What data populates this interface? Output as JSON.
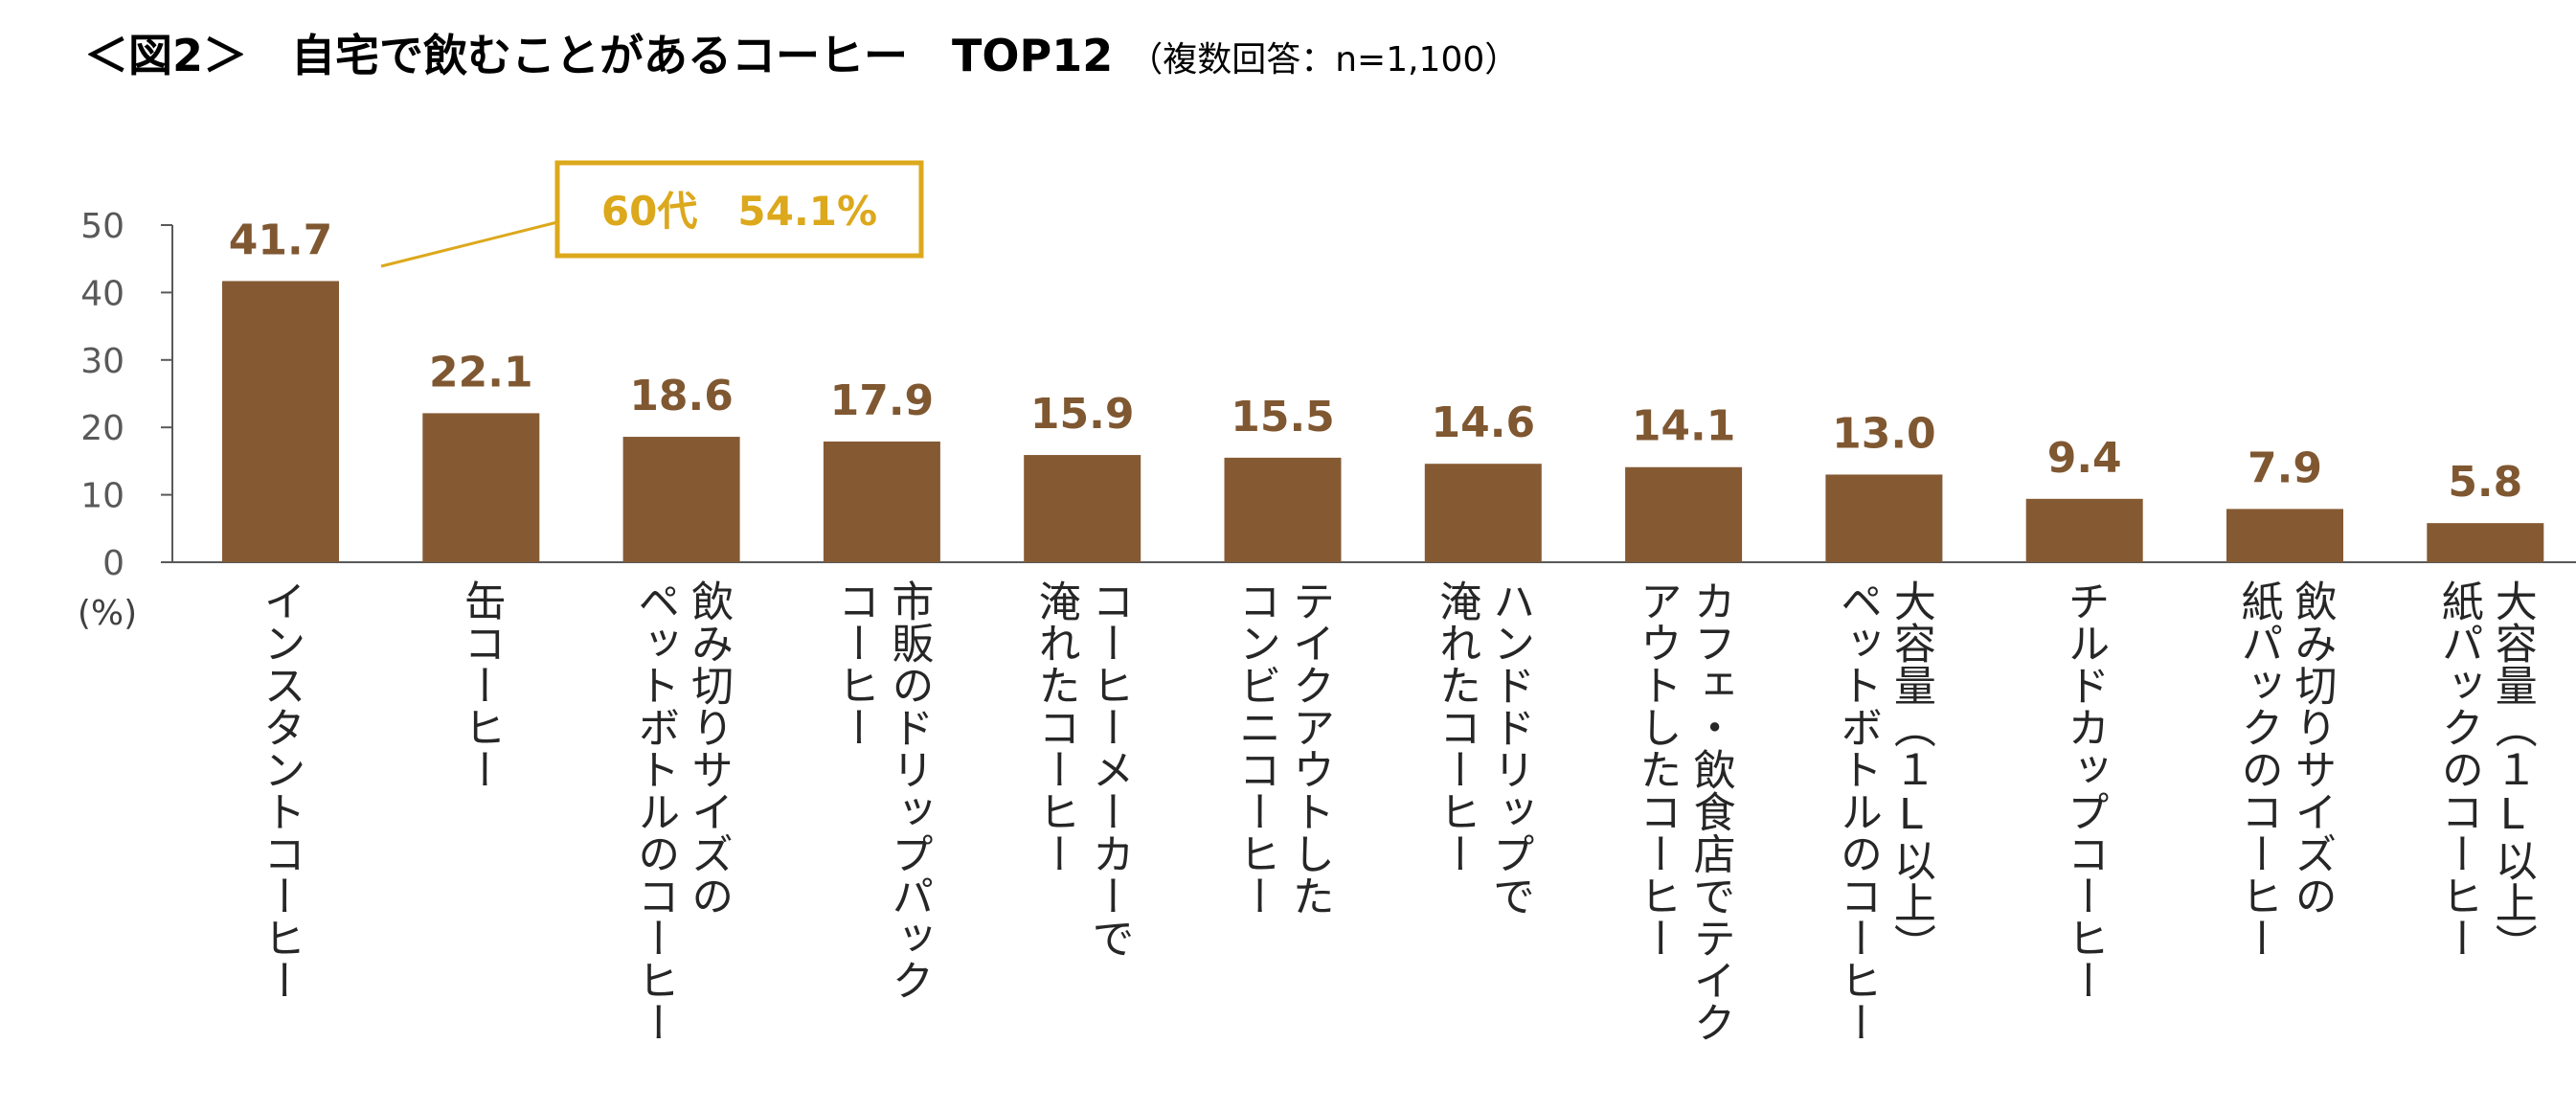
{
  "title": {
    "main": "＜図2＞　自宅で飲むことがあるコーヒー　TOP12",
    "sub": "（複数回答：n=1,100）"
  },
  "colors": {
    "bar": "#855A33",
    "value_label": "#7F5731",
    "callout": "#DCA81C",
    "axis": "#595959"
  },
  "chart_data": {
    "type": "bar",
    "title": "＜図2＞　自宅で飲むことがあるコーヒー　TOP12",
    "ylabel": "(%)",
    "xlabel": "",
    "ylim": [
      0,
      50
    ],
    "yticks": [
      0,
      10,
      20,
      30,
      40,
      50
    ],
    "grid": false,
    "categories": [
      "インスタントコーヒー",
      "缶コーヒー",
      "飲み切りサイズのペットボトルのコーヒー",
      "市販のドリップパックコーヒー",
      "コーヒーメーカーで淹れたコーヒー",
      "テイクアウトしたコンビニコーヒー",
      "ハンドドリップで淹れたコーヒー",
      "カフェ・飲食店でテイクアウトしたコーヒー",
      "大容量（１L以上）ペットボトルのコーヒー",
      "チルドカップコーヒー",
      "飲み切りサイズの紙パックのコーヒー",
      "大容量（１L以上）紙パックのコーヒー"
    ],
    "category_lines": [
      [
        "インスタントコーヒー"
      ],
      [
        "缶コーヒー"
      ],
      [
        "飲み切りサイズの",
        "ペットボトルのコーヒー"
      ],
      [
        "市販のドリップパック",
        "コーヒー"
      ],
      [
        "コーヒーメーカーで",
        "淹れたコーヒー"
      ],
      [
        "テイクアウトした",
        "コンビニコーヒー"
      ],
      [
        "ハンドドリップで",
        "淹れたコーヒー"
      ],
      [
        "カフェ・飲食店でテイク",
        "アウトしたコーヒー"
      ],
      [
        "大容量（１L以上）",
        "ペットボトルのコーヒー"
      ],
      [
        "チルドカップコーヒー"
      ],
      [
        "飲み切りサイズの",
        "紙パックのコーヒー"
      ],
      [
        "大容量（１L以上）",
        "紙パックのコーヒー"
      ]
    ],
    "values": [
      41.7,
      22.1,
      18.6,
      17.9,
      15.9,
      15.5,
      14.6,
      14.1,
      13.0,
      9.4,
      7.9,
      5.8
    ],
    "value_labels": [
      "41.7",
      "22.1",
      "18.6",
      "17.9",
      "15.9",
      "15.5",
      "14.6",
      "14.1",
      "13.0",
      "9.4",
      "7.9",
      "5.8"
    ],
    "annotations": [
      {
        "text": "60代　54.1%",
        "category_index": 0
      }
    ]
  }
}
